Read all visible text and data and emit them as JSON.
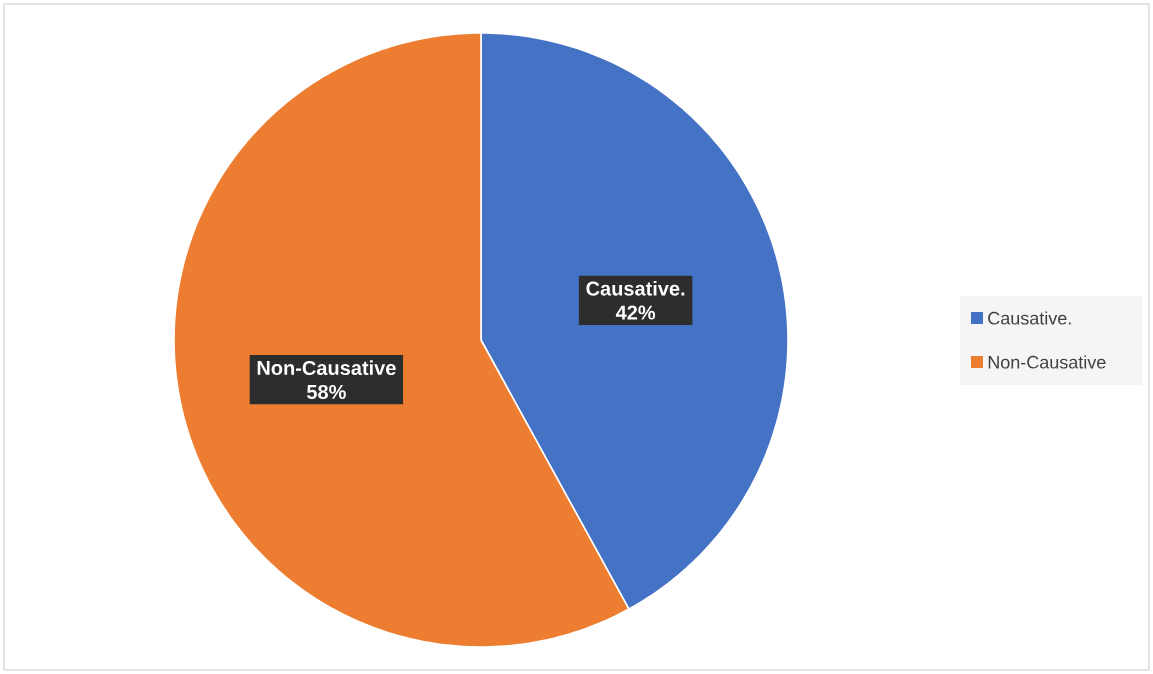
{
  "chart_data": {
    "type": "pie",
    "categories": [
      "Causative.",
      "Non-Causative"
    ],
    "values": [
      42,
      58
    ],
    "colors": [
      "#4472c4",
      "#ed7d31"
    ],
    "value_labels": [
      "42%",
      "58%"
    ],
    "legend": "right"
  }
}
